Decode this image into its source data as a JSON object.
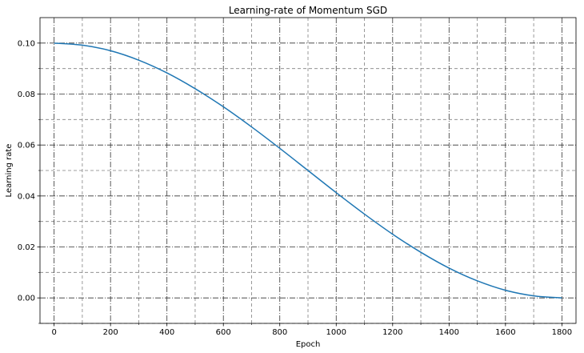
{
  "chart_data": {
    "type": "line",
    "title": "Learning-rate of Momentum SGD",
    "xlabel": "Epoch",
    "ylabel": "Learning rate",
    "xlim": [
      -50,
      1850
    ],
    "ylim": [
      -0.01,
      0.11
    ],
    "x_major_ticks": [
      0,
      200,
      400,
      600,
      800,
      1000,
      1200,
      1400,
      1600,
      1800
    ],
    "x_minor_ticks": [
      100,
      300,
      500,
      700,
      900,
      1100,
      1300,
      1500,
      1700
    ],
    "y_major_ticks": [
      0.0,
      0.02,
      0.04,
      0.06,
      0.08,
      0.1
    ],
    "y_minor_ticks": [
      -0.01,
      0.01,
      0.03,
      0.05,
      0.07,
      0.09
    ],
    "x_tick_labels": [
      "0",
      "200",
      "400",
      "600",
      "800",
      "1000",
      "1200",
      "1400",
      "1600",
      "1800"
    ],
    "y_tick_labels": [
      "0.00",
      "0.02",
      "0.04",
      "0.06",
      "0.08",
      "0.10"
    ],
    "grid": true,
    "series_color": "#1f77b4",
    "series": [
      {
        "x": [
          0,
          100,
          200,
          300,
          400,
          500,
          600,
          700,
          800,
          900,
          1000,
          1100,
          1200,
          1300,
          1400,
          1500,
          1600,
          1700,
          1800
        ],
        "values": [
          0.1,
          0.0992,
          0.097,
          0.0933,
          0.0883,
          0.0821,
          0.075,
          0.0671,
          0.0587,
          0.05,
          0.0413,
          0.0329,
          0.025,
          0.0179,
          0.0117,
          0.0067,
          0.003,
          0.0008,
          0.0
        ]
      }
    ]
  }
}
